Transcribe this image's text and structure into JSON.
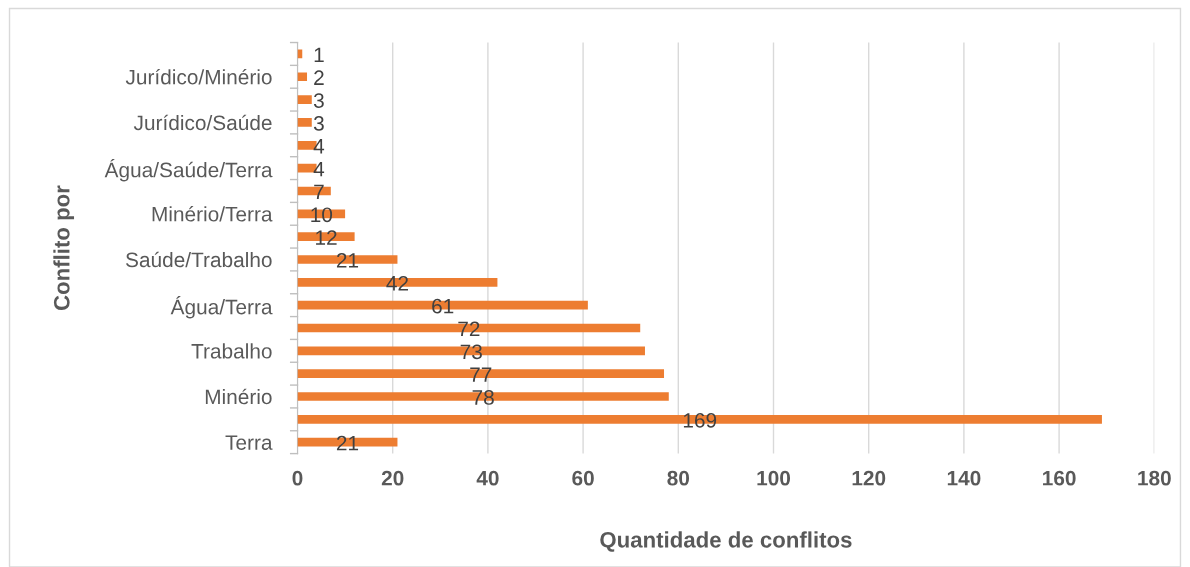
{
  "chart_data": {
    "type": "bar",
    "orientation": "horizontal",
    "xlabel": "Quantidade de conflitos",
    "ylabel": "Conflito por",
    "categories": [
      null,
      "Jurídico/Minério",
      null,
      "Jurídico/Saúde",
      null,
      "Água/Saúde/Terra",
      null,
      "Minério/Terra",
      null,
      "Saúde/Trabalho",
      null,
      "Água/Terra",
      null,
      "Trabalho",
      null,
      "Minério",
      null,
      "Terra"
    ],
    "values": [
      1,
      2,
      3,
      3,
      4,
      4,
      7,
      10,
      12,
      21,
      42,
      61,
      72,
      73,
      77,
      78,
      169,
      21
    ],
    "color": "#ed7d31",
    "xlim": [
      0,
      180
    ],
    "xticks": [
      0,
      20,
      40,
      60,
      80,
      100,
      120,
      140,
      160,
      180
    ],
    "grid": "x",
    "data_labels": true
  }
}
